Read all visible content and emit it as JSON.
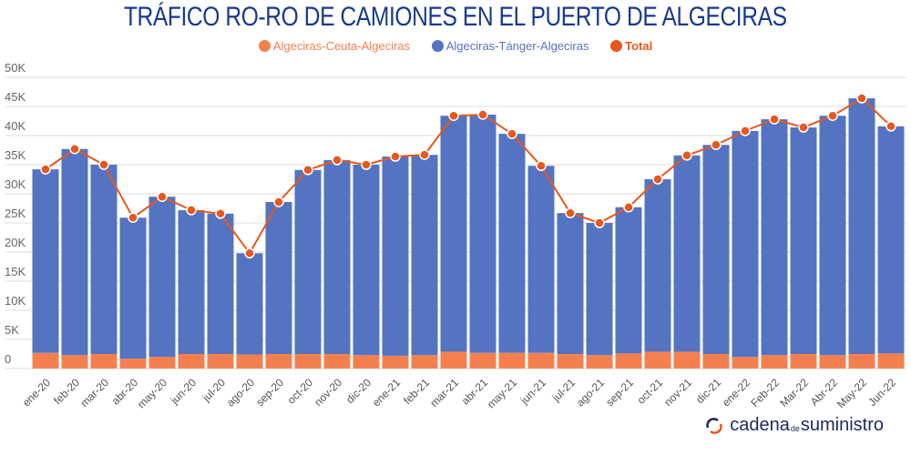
{
  "chart_data": {
    "type": "bar",
    "stacked": true,
    "title": "TRÁFICO RO-RO DE CAMIONES EN EL PUERTO DE ALGECIRAS",
    "categories": [
      "ene-20",
      "feb-20",
      "mar-20",
      "abr-20",
      "may-20",
      "jun-20",
      "jul-20",
      "ago-20",
      "sep-20",
      "oct-20",
      "nov-20",
      "dic-20",
      "ene-21",
      "feb-21",
      "mar-21",
      "abr-21",
      "may-21",
      "jun-21",
      "jul-21",
      "ago-21",
      "sep-21",
      "oct-21",
      "nov-21",
      "dic-21",
      "ene-22",
      "Feb-22",
      "Mar-22",
      "Abr-22",
      "May-22",
      "Jun-22"
    ],
    "series": [
      {
        "name": "Algeciras-Ceuta-Algeciras",
        "type": "bar",
        "color": "#f5804f",
        "values": [
          2700,
          2300,
          2500,
          1700,
          2000,
          2500,
          2500,
          2400,
          2500,
          2500,
          2500,
          2300,
          2200,
          2300,
          2900,
          2700,
          2700,
          2700,
          2500,
          2300,
          2600,
          2900,
          2900,
          2500,
          2000,
          2300,
          2500,
          2300,
          2500,
          2600
        ]
      },
      {
        "name": "Algeciras-Tánger-Algeciras",
        "type": "bar",
        "color": "#5474c2",
        "values": [
          31500,
          35400,
          32500,
          24200,
          27500,
          24700,
          24100,
          17400,
          26100,
          31600,
          33300,
          32700,
          34200,
          34400,
          40500,
          40900,
          37600,
          32100,
          24200,
          22700,
          25100,
          29600,
          33700,
          35900,
          38800,
          40500,
          38900,
          41100,
          43900,
          39000
        ]
      },
      {
        "name": "Total",
        "type": "line",
        "color": "#e8571c",
        "values": [
          34200,
          37700,
          35000,
          25900,
          29500,
          27200,
          26600,
          19800,
          28600,
          34100,
          35800,
          35000,
          36400,
          36700,
          43400,
          43600,
          40300,
          34800,
          26700,
          25000,
          27700,
          32500,
          36600,
          38400,
          40800,
          42800,
          41400,
          43400,
          46400,
          41600
        ]
      }
    ],
    "yticks": [
      "0",
      "5K",
      "10K",
      "15K",
      "20K",
      "25K",
      "30K",
      "35K",
      "40K",
      "45K",
      "50K"
    ],
    "ylim": [
      0,
      50000
    ],
    "grid": true,
    "legend_position": "top-center",
    "xlabel": "",
    "ylabel": ""
  },
  "logo": {
    "text_a": "cadena",
    "text_b": "de",
    "text_c": "suministro"
  }
}
